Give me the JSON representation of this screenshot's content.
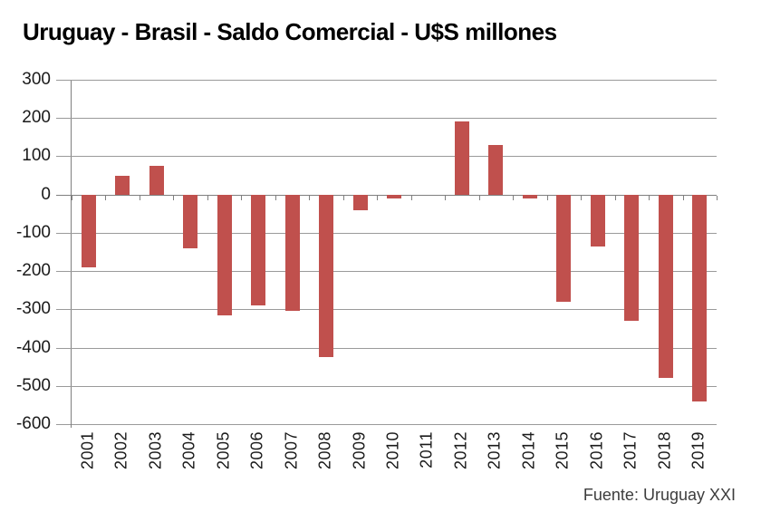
{
  "chart_data": {
    "type": "bar",
    "title": "Uruguay - Brasil - Saldo Comercial - U$S millones",
    "categories": [
      "2001",
      "2002",
      "2003",
      "2004",
      "2005",
      "2006",
      "2007",
      "2008",
      "2009",
      "2010",
      "2011",
      "2012",
      "2013",
      "2014",
      "2015",
      "2016",
      "2017",
      "2018",
      "2019"
    ],
    "values": [
      -190,
      50,
      75,
      -140,
      -315,
      -290,
      -305,
      -425,
      -40,
      -10,
      0,
      190,
      130,
      -10,
      -280,
      -135,
      -330,
      -480,
      -540
    ],
    "xlabel": "",
    "ylabel": "",
    "ylim": [
      -600,
      300
    ],
    "yticks": [
      300,
      200,
      100,
      0,
      -100,
      -200,
      -300,
      -400,
      -500,
      -600
    ],
    "grid": "horizontal",
    "legend": "none"
  },
  "source": {
    "text": "Fuente: Uruguay XXI"
  },
  "colors": {
    "bar": "#c0504d",
    "grid": "#9a9a9a",
    "axis": "#7f7f7f",
    "ink": "#1a1a1a"
  }
}
